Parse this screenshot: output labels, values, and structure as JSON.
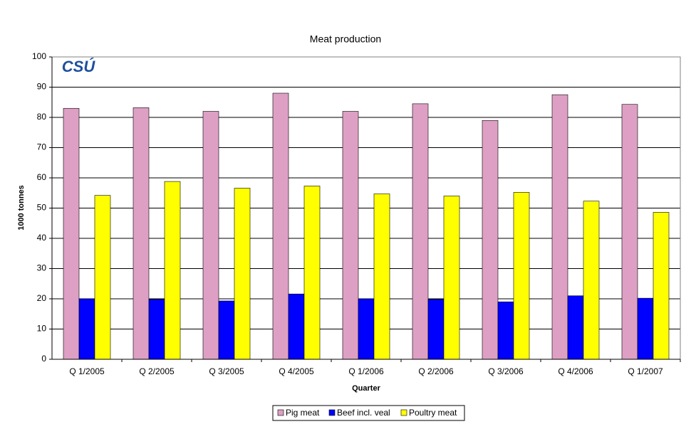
{
  "chart_data": {
    "type": "bar",
    "title": "Meat production",
    "logo": "CSÚ",
    "x_label": "Quarter",
    "y_label": "1000 tonnes",
    "categories": [
      "Q 1/2005",
      "Q 2/2005",
      "Q 3/2005",
      "Q 4/2005",
      "Q 1/2006",
      "Q 2/2006",
      "Q 3/2006",
      "Q 4/2006",
      "Q 1/2007"
    ],
    "series": [
      {
        "name": "Pig meat",
        "color": "#dda0c4",
        "values": [
          83,
          83.2,
          82,
          88,
          82,
          84.5,
          79,
          87.5,
          84.3
        ]
      },
      {
        "name": "Beef incl. veal",
        "color": "#0000ff",
        "values": [
          20,
          19.8,
          19.3,
          21.6,
          20,
          19.8,
          19,
          21,
          20.2
        ]
      },
      {
        "name": "Poultry meat",
        "color": "#ffff00",
        "values": [
          54.2,
          58.8,
          56.6,
          57.3,
          54.7,
          54,
          55.2,
          52.3,
          48.6
        ]
      }
    ],
    "ylim": [
      0,
      100
    ],
    "yticks": [
      0,
      10,
      20,
      30,
      40,
      50,
      60,
      70,
      80,
      90,
      100
    ],
    "grid": true,
    "legend": "bottom"
  }
}
